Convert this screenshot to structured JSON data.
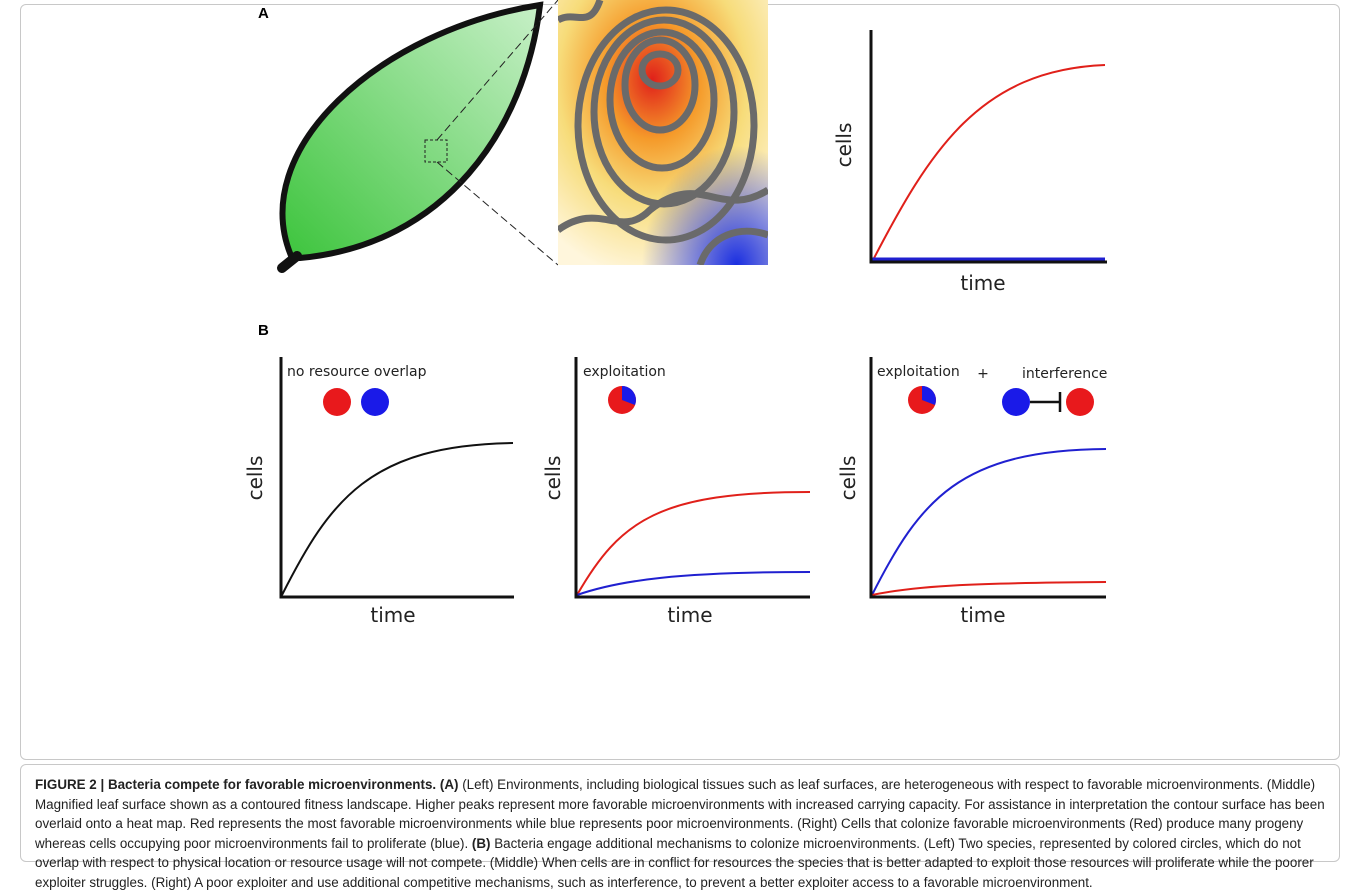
{
  "panel_labels": [
    "A",
    "B"
  ],
  "plots": [
    {
      "x_label": "time",
      "y_label": "cells"
    },
    {
      "x_label": "time",
      "y_label": "cells",
      "annotations": [
        "no resource overlap"
      ]
    },
    {
      "x_label": "time",
      "y_label": "cells",
      "annotations": [
        "exploitation"
      ]
    },
    {
      "x_label": "time",
      "y_label": "cells",
      "annotations": [
        "exploitation",
        "+",
        "interference"
      ]
    }
  ],
  "caption": {
    "title": "FIGURE 2 | Bacteria compete for favorable microenvironments.",
    "parts": [
      {
        "label": "(A)",
        "text": "(Left) Environments, including biological tissues such as leaf surfaces, are heterogeneous with respect to favorable microenvironments. (Middle) Magnified leaf surface shown as a contoured fitness landscape. Higher peaks represent more favorable microenvironments with increased carrying capacity. For assistance in interpretation the contour surface has been overlaid onto a heat map. Red represents the most favorable microenvironments while blue represents poor microenvironments. (Right) Cells that colonize favorable microenvironments (Red) produce many progeny whereas cells occupying poor microenvironments fail to proliferate (blue)."
      },
      {
        "label": "(B)",
        "text": "Bacteria engage additional mechanisms to colonize microenvironments. (Left) Two species, represented by colored circles, which do not overlap with respect to physical location or resource usage will not compete. (Middle) When cells are in conflict for resources the species that is better adapted to exploit those resources will proliferate while the poorer exploiter struggles. (Right) A poor exploiter and use additional competitive mechanisms, such as interference, to prevent a better exploiter access to a favorable microenvironment."
      }
    ]
  }
}
